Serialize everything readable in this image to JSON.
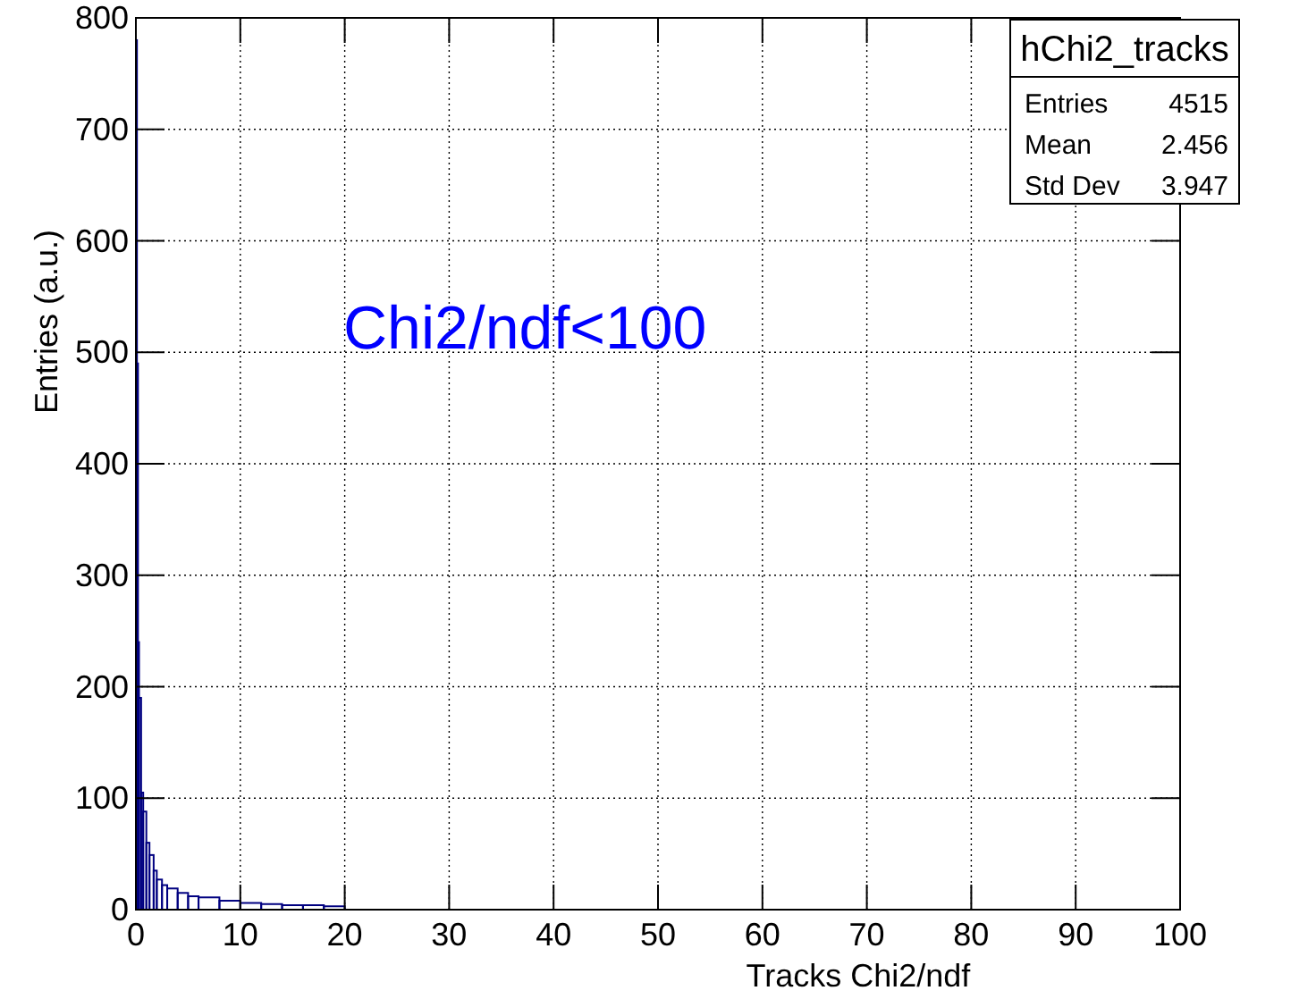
{
  "chart_data": {
    "type": "histogram",
    "xlabel": "Tracks Chi2/ndf",
    "ylabel": "Entries (a.u.)",
    "bins": [
      0,
      0.1,
      0.2,
      0.3,
      0.5,
      0.7,
      1,
      1.3,
      1.7,
      2,
      2.5,
      3,
      4,
      5,
      6,
      8,
      10,
      12,
      14,
      16,
      18,
      20
    ],
    "values": [
      780,
      490,
      240,
      190,
      105,
      88,
      60,
      49,
      35,
      27,
      22,
      19,
      15,
      12,
      11,
      8,
      6,
      5,
      4,
      4,
      3
    ],
    "color": "#000080",
    "xlim": [
      0,
      100
    ],
    "xticks": [
      0,
      10,
      20,
      30,
      40,
      50,
      60,
      70,
      80,
      90,
      100
    ],
    "ylim": [
      0,
      800
    ],
    "yticks": [
      0,
      100,
      200,
      300,
      400,
      500,
      600,
      700,
      800
    ],
    "grid": true,
    "annotations": [
      "Chi2/ndf<100",
      "hChi2_tracks",
      "Entries 4515",
      "Mean 2.456",
      "Std Dev 3.947"
    ]
  }
}
